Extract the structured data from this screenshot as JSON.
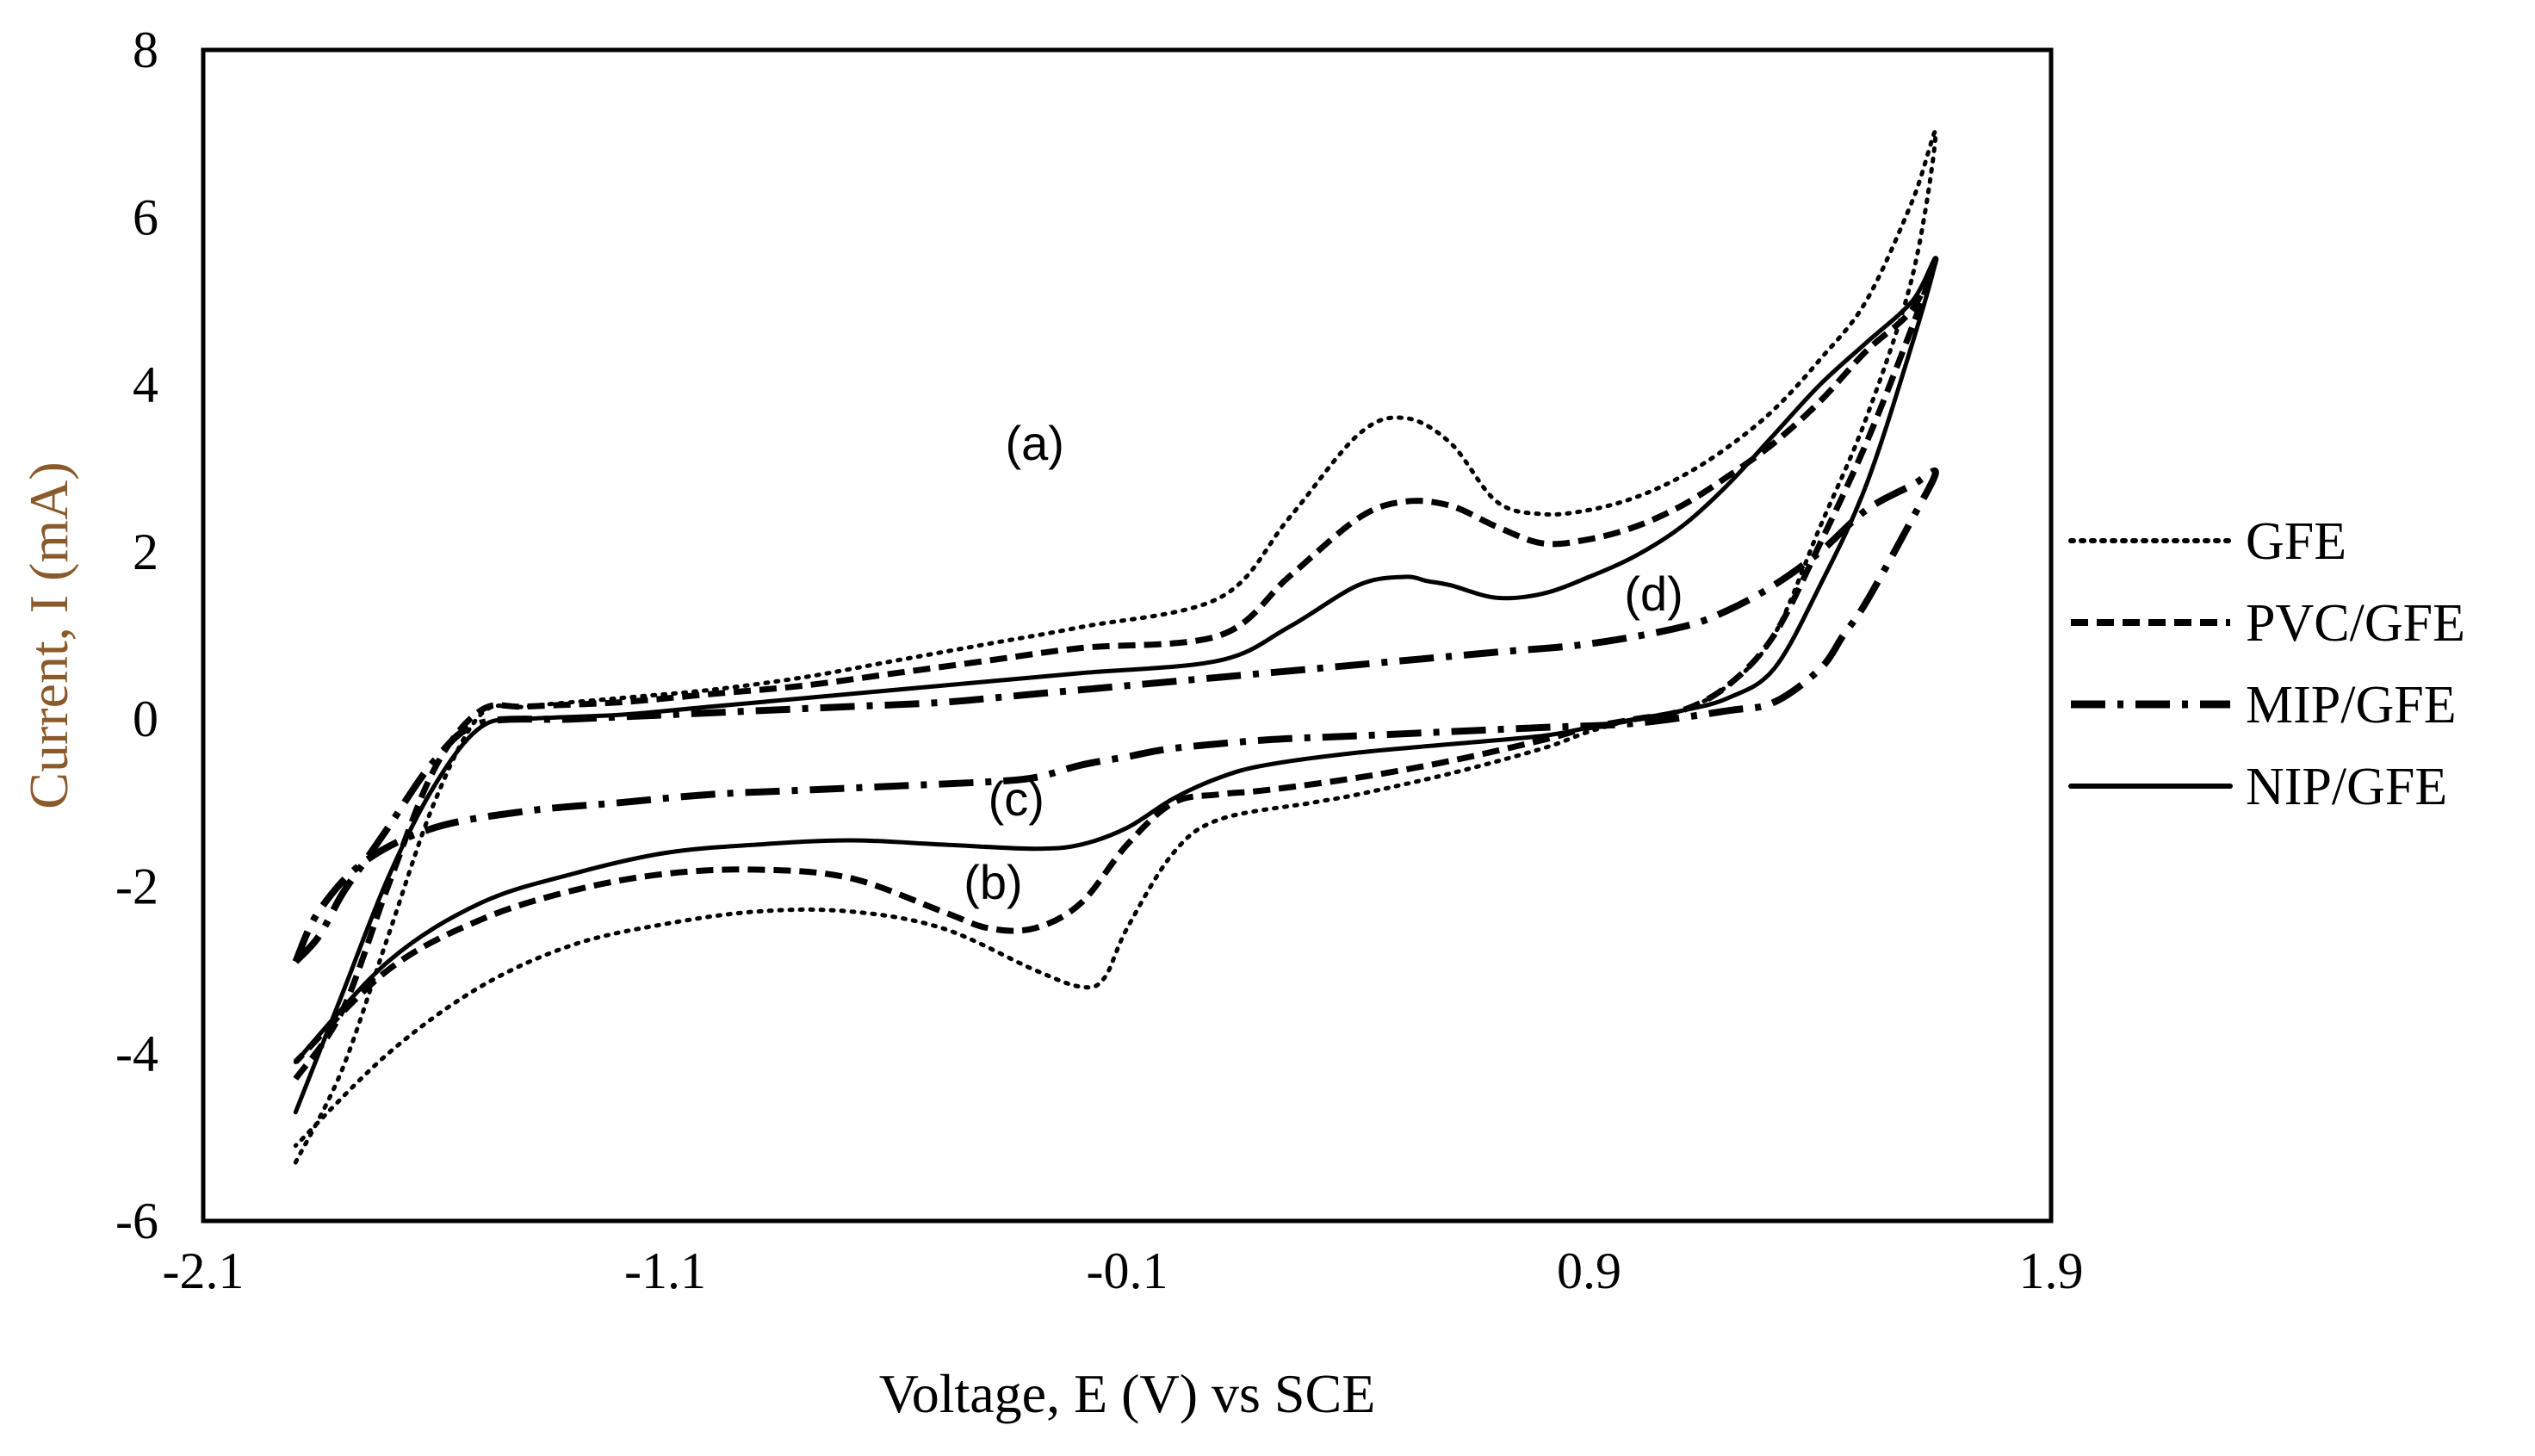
{
  "chart_data": {
    "type": "line",
    "title": "",
    "xlabel": "Voltage, E (V) vs SCE",
    "ylabel": "Current, I (mA)",
    "xlim": [
      -2.1,
      1.9
    ],
    "ylim": [
      -6,
      8
    ],
    "xticks": [
      -2.1,
      -1.1,
      -0.1,
      0.9,
      1.9
    ],
    "xtick_labels": [
      "-2.1",
      "-1.1",
      "-0.1",
      "0.9",
      "1.9"
    ],
    "yticks": [
      -6,
      -4,
      -2,
      0,
      2,
      4,
      6,
      8
    ],
    "ytick_labels": [
      "-6",
      "-4",
      "-2",
      "0",
      "2",
      "4",
      "6",
      "8"
    ],
    "grid": false,
    "legend_position": "right",
    "series": [
      {
        "name": "GFE",
        "style": "dotted",
        "x": [
          -1.9,
          -1.8,
          -1.7,
          -1.6,
          -1.5,
          -1.4,
          -1.2,
          -1.0,
          -0.8,
          -0.6,
          -0.4,
          -0.2,
          0.1,
          0.25,
          0.4,
          0.5,
          0.6,
          0.7,
          0.8,
          0.9,
          1.0,
          1.1,
          1.2,
          1.3,
          1.4,
          1.5,
          1.6,
          1.65,
          1.6,
          1.5,
          1.4,
          1.3,
          1.2,
          1.1,
          1.0,
          0.9,
          0.8,
          0.6,
          0.4,
          0.3,
          0.1,
          0.0,
          -0.1,
          -0.15,
          -0.2,
          -0.3,
          -0.5,
          -0.7,
          -0.9,
          -1.1,
          -1.3,
          -1.5,
          -1.7,
          -1.9
        ],
        "y": [
          -5.3,
          -4.2,
          -2.6,
          -1.0,
          0.05,
          0.15,
          0.25,
          0.35,
          0.5,
          0.7,
          0.9,
          1.1,
          1.45,
          2.4,
          3.4,
          3.6,
          3.3,
          2.6,
          2.45,
          2.5,
          2.65,
          2.9,
          3.25,
          3.7,
          4.3,
          5.0,
          6.2,
          7.0,
          5.3,
          3.6,
          2.3,
          1.0,
          0.4,
          0.1,
          0.0,
          -0.15,
          -0.35,
          -0.65,
          -0.9,
          -1.0,
          -1.2,
          -1.6,
          -2.5,
          -3.1,
          -3.2,
          -3.0,
          -2.5,
          -2.3,
          -2.3,
          -2.45,
          -2.7,
          -3.2,
          -4.0,
          -5.1
        ]
      },
      {
        "name": "PVC/GFE",
        "style": "dashed",
        "x": [
          -1.9,
          -1.8,
          -1.7,
          -1.6,
          -1.5,
          -1.4,
          -1.2,
          -1.0,
          -0.8,
          -0.6,
          -0.4,
          -0.2,
          0.1,
          0.25,
          0.4,
          0.5,
          0.6,
          0.7,
          0.8,
          0.9,
          1.0,
          1.1,
          1.2,
          1.3,
          1.4,
          1.5,
          1.6,
          1.65,
          1.6,
          1.5,
          1.4,
          1.3,
          1.2,
          1.1,
          1.0,
          0.9,
          0.8,
          0.6,
          0.4,
          0.2,
          0.1,
          0.0,
          -0.1,
          -0.2,
          -0.3,
          -0.4,
          -0.5,
          -0.7,
          -0.9,
          -1.1,
          -1.3,
          -1.5,
          -1.7,
          -1.9
        ],
        "y": [
          -4.3,
          -3.5,
          -2.0,
          -0.6,
          0.1,
          0.15,
          0.2,
          0.3,
          0.4,
          0.55,
          0.7,
          0.85,
          1.0,
          1.7,
          2.4,
          2.6,
          2.55,
          2.3,
          2.1,
          2.15,
          2.3,
          2.55,
          2.9,
          3.3,
          3.8,
          4.4,
          4.9,
          5.5,
          4.7,
          3.3,
          2.1,
          1.0,
          0.4,
          0.1,
          0.0,
          -0.1,
          -0.25,
          -0.5,
          -0.7,
          -0.85,
          -0.9,
          -1.0,
          -1.5,
          -2.2,
          -2.5,
          -2.5,
          -2.3,
          -1.9,
          -1.8,
          -1.85,
          -2.05,
          -2.4,
          -3.0,
          -4.1
        ]
      },
      {
        "name": "MIP/GFE",
        "style": "dashdot",
        "x": [
          -1.9,
          -1.85,
          -1.8,
          -1.75,
          -1.7,
          -1.6,
          -1.5,
          -1.3,
          -1.1,
          -0.9,
          -0.7,
          -0.5,
          -0.3,
          -0.1,
          0.1,
          0.3,
          0.5,
          0.7,
          0.9,
          1.1,
          1.2,
          1.3,
          1.4,
          1.5,
          1.6,
          1.65,
          1.6,
          1.5,
          1.45,
          1.4,
          1.3,
          1.2,
          1.0,
          0.8,
          0.6,
          0.4,
          0.2,
          0.0,
          -0.1,
          -0.2,
          -0.3,
          -0.4,
          -0.6,
          -0.8,
          -1.0,
          -1.2,
          -1.4,
          -1.6,
          -1.75,
          -1.85,
          -1.9
        ],
        "y": [
          -2.9,
          -2.6,
          -2.1,
          -1.7,
          -1.3,
          -0.5,
          -0.05,
          0.0,
          0.05,
          0.1,
          0.15,
          0.2,
          0.3,
          0.4,
          0.5,
          0.6,
          0.7,
          0.8,
          0.9,
          1.1,
          1.3,
          1.6,
          2.0,
          2.5,
          2.8,
          2.95,
          2.4,
          1.4,
          1.0,
          0.6,
          0.2,
          0.1,
          -0.05,
          -0.1,
          -0.15,
          -0.2,
          -0.25,
          -0.35,
          -0.45,
          -0.55,
          -0.7,
          -0.75,
          -0.8,
          -0.85,
          -0.9,
          -1.0,
          -1.1,
          -1.3,
          -1.7,
          -2.3,
          -2.9
        ]
      },
      {
        "name": "NIP/GFE",
        "style": "solid",
        "x": [
          -1.9,
          -1.8,
          -1.7,
          -1.6,
          -1.5,
          -1.4,
          -1.2,
          -1.0,
          -0.8,
          -0.6,
          -0.4,
          -0.2,
          0.1,
          0.25,
          0.4,
          0.5,
          0.55,
          0.6,
          0.7,
          0.8,
          0.9,
          1.0,
          1.1,
          1.2,
          1.3,
          1.4,
          1.5,
          1.6,
          1.65,
          1.6,
          1.5,
          1.4,
          1.3,
          1.2,
          1.1,
          1.0,
          0.9,
          0.8,
          0.6,
          0.4,
          0.2,
          0.1,
          0.0,
          -0.1,
          -0.2,
          -0.3,
          -0.5,
          -0.7,
          -0.9,
          -1.1,
          -1.3,
          -1.5,
          -1.7,
          -1.9
        ],
        "y": [
          -4.7,
          -3.3,
          -1.9,
          -0.8,
          -0.1,
          0.0,
          0.05,
          0.15,
          0.25,
          0.35,
          0.45,
          0.55,
          0.7,
          1.1,
          1.6,
          1.7,
          1.65,
          1.6,
          1.45,
          1.5,
          1.7,
          1.95,
          2.3,
          2.8,
          3.4,
          4.0,
          4.5,
          5.0,
          5.5,
          4.5,
          2.8,
          1.6,
          0.6,
          0.25,
          0.1,
          0.0,
          -0.1,
          -0.2,
          -0.3,
          -0.4,
          -0.55,
          -0.7,
          -0.95,
          -1.3,
          -1.5,
          -1.55,
          -1.5,
          -1.45,
          -1.5,
          -1.6,
          -1.85,
          -2.2,
          -2.9,
          -4.1
        ]
      }
    ],
    "annotations": [
      {
        "text": "(a)",
        "x": -0.3,
        "y": 3.1
      },
      {
        "text": "(b)",
        "x": -0.39,
        "y": -2.15
      },
      {
        "text": "(c)",
        "x": -0.34,
        "y": -1.15
      },
      {
        "text": "(d)",
        "x": 1.04,
        "y": 1.3
      }
    ]
  }
}
